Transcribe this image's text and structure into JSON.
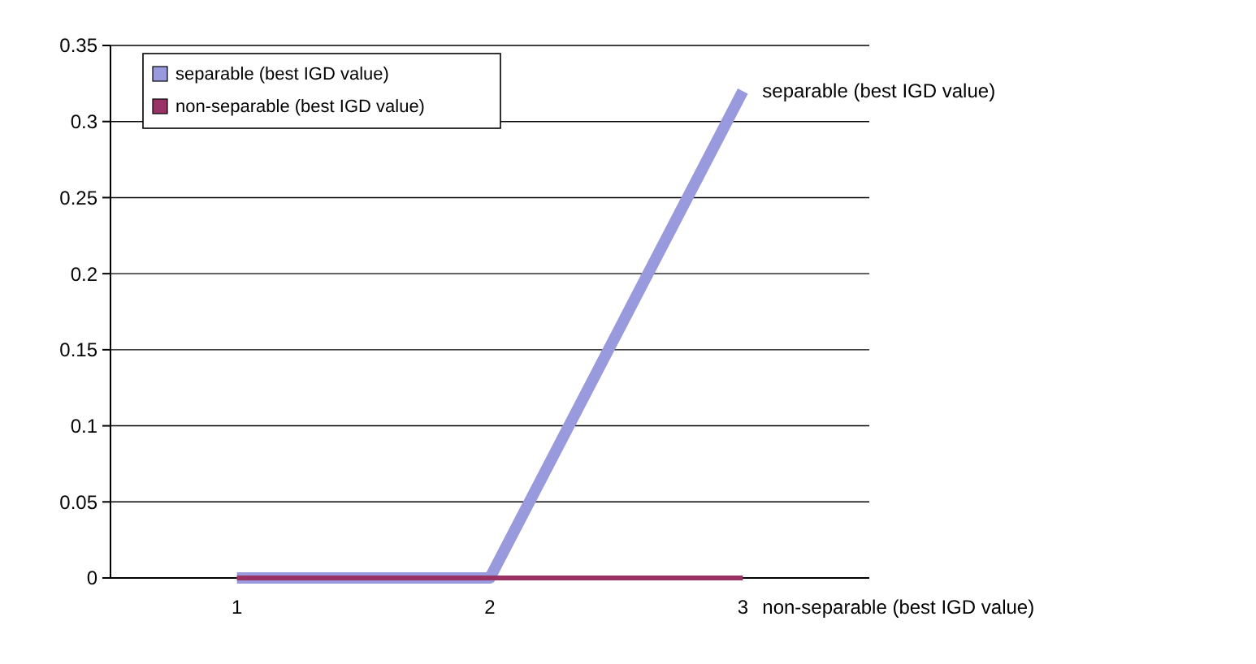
{
  "chart_data": {
    "type": "line",
    "categories": [
      "1",
      "2",
      "3"
    ],
    "series": [
      {
        "name": "separable (best IGD value)",
        "color": "#9999dd",
        "values": [
          0,
          0,
          0.32
        ]
      },
      {
        "name": "non-separable (best IGD value)",
        "color": "#993366",
        "values": [
          0,
          0,
          0
        ]
      }
    ],
    "ylim": [
      0,
      0.35
    ],
    "yticks": [
      0,
      0.05,
      0.1,
      0.15,
      0.2,
      0.25,
      0.3,
      0.35
    ],
    "grid": "y",
    "legend": "top left",
    "marker": "none"
  }
}
